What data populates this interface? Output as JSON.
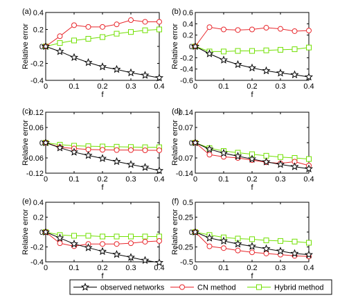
{
  "colors": {
    "observed": "#000000",
    "cn": "#e8262b",
    "hybrid": "#71e000"
  },
  "legend": {
    "observed": "observed networks",
    "cn": "CN method",
    "hybrid": "Hybrid method"
  },
  "markers": {
    "observed": "star",
    "cn": "circle",
    "hybrid": "square"
  },
  "chart_data": [
    {
      "type": "line",
      "panel_label": "(a)",
      "xlabel": "f",
      "ylabel": "Relative error",
      "xlim": [
        0,
        0.4
      ],
      "ylim": [
        -0.4,
        0.4
      ],
      "xticks": [
        "0",
        "0.1",
        "0.2",
        "0.3",
        "0.4"
      ],
      "yticks": [
        "-0.4",
        "-0.2",
        "0",
        "0.2",
        "0.4"
      ],
      "x": [
        0,
        0.05,
        0.1,
        0.15,
        0.2,
        0.25,
        0.3,
        0.35,
        0.4
      ],
      "series": [
        {
          "key": "observed",
          "name": "observed networks",
          "values": [
            0,
            -0.06,
            -0.13,
            -0.19,
            -0.24,
            -0.27,
            -0.31,
            -0.34,
            -0.37
          ]
        },
        {
          "key": "cn",
          "name": "CN method",
          "values": [
            0,
            0.12,
            0.25,
            0.23,
            0.23,
            0.26,
            0.31,
            0.29,
            0.29
          ]
        },
        {
          "key": "hybrid",
          "name": "Hybrid method",
          "values": [
            0,
            0.04,
            0.07,
            0.09,
            0.11,
            0.15,
            0.17,
            0.19,
            0.2
          ]
        }
      ]
    },
    {
      "type": "line",
      "panel_label": "(b)",
      "xlabel": "f",
      "ylabel": "Relative error",
      "xlim": [
        0,
        0.4
      ],
      "ylim": [
        -0.6,
        0.6
      ],
      "xticks": [
        "0",
        "0.1",
        "0.2",
        "0.3",
        "0.4"
      ],
      "yticks": [
        "-0.6",
        "-0.4",
        "-0.2",
        "0",
        "0.2",
        "0.4",
        "0.6"
      ],
      "x": [
        0,
        0.05,
        0.1,
        0.15,
        0.2,
        0.25,
        0.3,
        0.35,
        0.4
      ],
      "series": [
        {
          "key": "observed",
          "name": "observed networks",
          "values": [
            0,
            -0.13,
            -0.24,
            -0.32,
            -0.38,
            -0.43,
            -0.47,
            -0.5,
            -0.54
          ]
        },
        {
          "key": "cn",
          "name": "CN method",
          "values": [
            0,
            0.34,
            0.3,
            0.29,
            0.3,
            0.33,
            0.31,
            0.27,
            0.28
          ]
        },
        {
          "key": "hybrid",
          "name": "Hybrid method",
          "values": [
            0,
            -0.09,
            -0.09,
            -0.08,
            -0.08,
            -0.07,
            -0.06,
            -0.05,
            -0.02
          ]
        }
      ]
    },
    {
      "type": "line",
      "panel_label": "(c)",
      "xlabel": "f",
      "ylabel": "Relative error",
      "xlim": [
        0,
        0.4
      ],
      "ylim": [
        -0.12,
        0.12
      ],
      "xticks": [
        "0",
        "0.1",
        "0.2",
        "0.3",
        "0.4"
      ],
      "yticks": [
        "-0.12",
        "-0.06",
        "0",
        "0.06",
        "0.12"
      ],
      "x": [
        0,
        0.05,
        0.1,
        0.15,
        0.2,
        0.25,
        0.3,
        0.35,
        0.4
      ],
      "series": [
        {
          "key": "observed",
          "name": "observed networks",
          "values": [
            0,
            -0.02,
            -0.037,
            -0.05,
            -0.062,
            -0.074,
            -0.086,
            -0.097,
            -0.11
          ]
        },
        {
          "key": "cn",
          "name": "CN method",
          "values": [
            0,
            -0.018,
            -0.023,
            -0.027,
            -0.028,
            -0.029,
            -0.029,
            -0.03,
            -0.03
          ]
        },
        {
          "key": "hybrid",
          "name": "Hybrid method",
          "values": [
            0,
            -0.008,
            -0.012,
            -0.014,
            -0.015,
            -0.016,
            -0.017,
            -0.018,
            -0.018
          ]
        }
      ]
    },
    {
      "type": "line",
      "panel_label": "(d)",
      "xlabel": "f",
      "ylabel": "Relative error",
      "xlim": [
        0,
        0.4
      ],
      "ylim": [
        -0.14,
        0.14
      ],
      "xticks": [
        "0",
        "0.1",
        "0.2",
        "0.3",
        "0.4"
      ],
      "yticks": [
        "-0.14",
        "-0.07",
        "0",
        "0.07",
        "0.14"
      ],
      "x": [
        0,
        0.05,
        0.1,
        0.15,
        0.2,
        0.25,
        0.3,
        0.35,
        0.4
      ],
      "series": [
        {
          "key": "observed",
          "name": "observed networks",
          "values": [
            0,
            -0.03,
            -0.048,
            -0.062,
            -0.075,
            -0.088,
            -0.1,
            -0.11,
            -0.12
          ]
        },
        {
          "key": "cn",
          "name": "CN method",
          "values": [
            0,
            -0.055,
            -0.065,
            -0.07,
            -0.08,
            -0.09,
            -0.095,
            -0.087,
            -0.105
          ]
        },
        {
          "key": "hybrid",
          "name": "Hybrid method",
          "values": [
            0,
            -0.025,
            -0.038,
            -0.046,
            -0.053,
            -0.06,
            -0.066,
            -0.07,
            -0.075
          ]
        }
      ]
    },
    {
      "type": "line",
      "panel_label": "(e)",
      "xlabel": "f",
      "ylabel": "Relative error",
      "xlim": [
        0,
        0.4
      ],
      "ylim": [
        -0.4,
        0.4
      ],
      "xticks": [
        "0",
        "0.1",
        "0.2",
        "0.3",
        "0.4"
      ],
      "yticks": [
        "-0.4",
        "-0.2",
        "0",
        "0.2",
        "0.4"
      ],
      "x": [
        0,
        0.05,
        0.1,
        0.15,
        0.2,
        0.25,
        0.3,
        0.35,
        0.4
      ],
      "series": [
        {
          "key": "observed",
          "name": "observed networks",
          "values": [
            0,
            -0.08,
            -0.16,
            -0.21,
            -0.26,
            -0.3,
            -0.34,
            -0.38,
            -0.41
          ]
        },
        {
          "key": "cn",
          "name": "CN method",
          "values": [
            0,
            -0.15,
            -0.19,
            -0.16,
            -0.16,
            -0.16,
            -0.15,
            -0.13,
            -0.12
          ]
        },
        {
          "key": "hybrid",
          "name": "Hybrid method",
          "values": [
            0,
            -0.04,
            -0.05,
            -0.05,
            -0.06,
            -0.06,
            -0.06,
            -0.06,
            -0.06
          ]
        }
      ]
    },
    {
      "type": "line",
      "panel_label": "(f)",
      "xlabel": "f",
      "ylabel": "Relative error",
      "xlim": [
        0,
        0.4
      ],
      "ylim": [
        -0.5,
        0.5
      ],
      "xticks": [
        "0",
        "0.1",
        "0.2",
        "0.3",
        "0.4"
      ],
      "yticks": [
        "-0.5",
        "-0.25",
        "0",
        "0.25",
        "0.5"
      ],
      "x": [
        0,
        0.05,
        0.1,
        0.15,
        0.2,
        0.25,
        0.3,
        0.35,
        0.4
      ],
      "series": [
        {
          "key": "observed",
          "name": "observed networks",
          "values": [
            0,
            -0.1,
            -0.15,
            -0.2,
            -0.24,
            -0.28,
            -0.32,
            -0.36,
            -0.38
          ]
        },
        {
          "key": "cn",
          "name": "CN method",
          "values": [
            0,
            -0.24,
            -0.27,
            -0.31,
            -0.34,
            -0.36,
            -0.38,
            -0.4,
            -0.41
          ]
        },
        {
          "key": "hybrid",
          "name": "Hybrid method",
          "values": [
            0,
            -0.05,
            -0.09,
            -0.11,
            -0.12,
            -0.14,
            -0.15,
            -0.16,
            -0.18
          ]
        }
      ]
    }
  ]
}
